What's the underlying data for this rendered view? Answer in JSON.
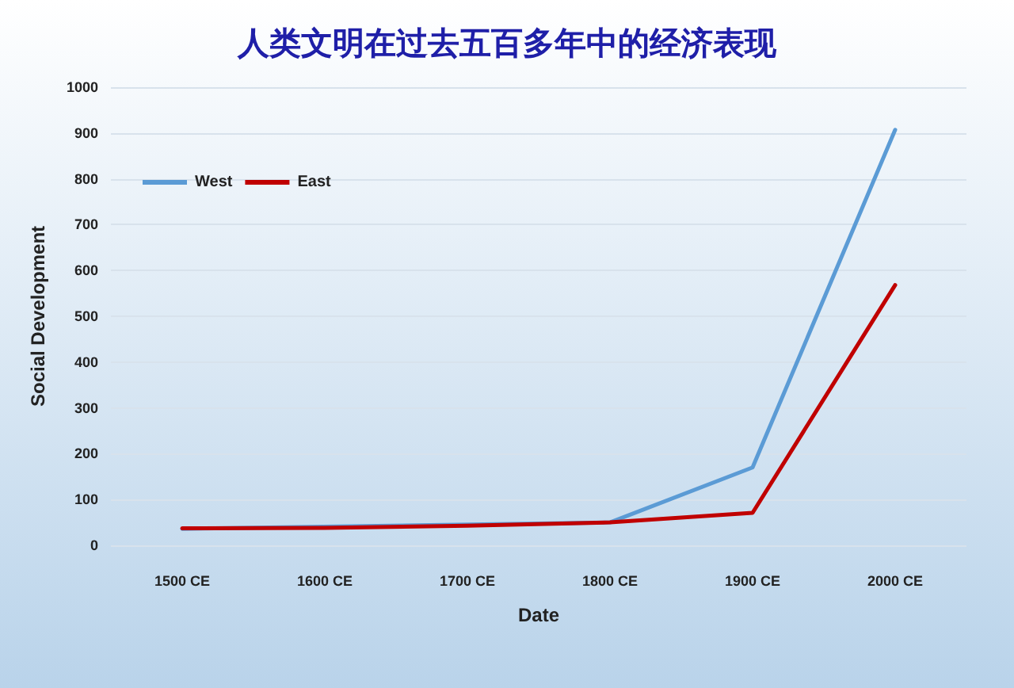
{
  "chart_data": {
    "type": "line",
    "title": "人类文明在过去五百多年中的经济表现",
    "xlabel": "Date",
    "ylabel": "Social Development",
    "categories": [
      "1500 CE",
      "1600 CE",
      "1700 CE",
      "1800 CE",
      "1900 CE",
      "2000 CE"
    ],
    "series": [
      {
        "name": "West",
        "color": "#5b9bd5",
        "values": [
          36,
          null,
          null,
          50,
          170,
          907
        ]
      },
      {
        "name": "East",
        "color": "#c00000",
        "values": [
          37,
          38,
          43,
          50,
          71,
          568
        ]
      }
    ],
    "ylim": [
      0,
      1000
    ],
    "yticks": [
      0,
      100,
      200,
      300,
      400,
      500,
      600,
      700,
      800,
      900,
      1000
    ],
    "grid": "y",
    "legend": "top left",
    "marker": "none",
    "line_style": "solid"
  }
}
